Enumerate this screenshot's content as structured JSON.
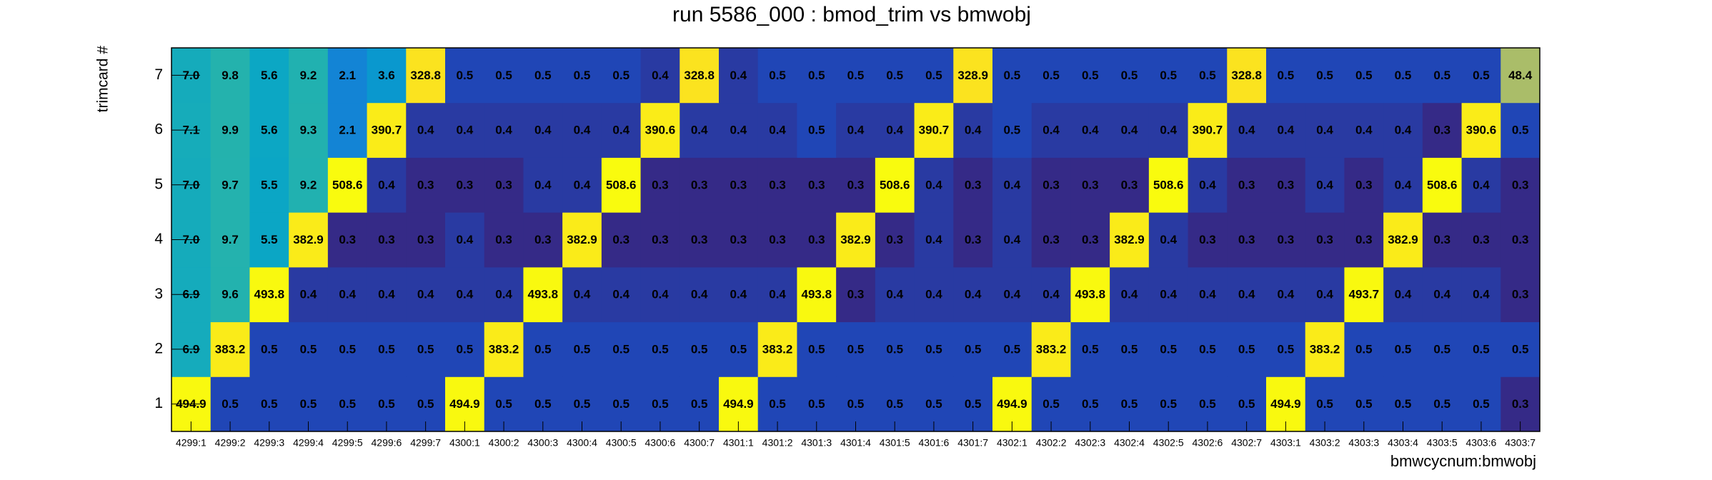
{
  "chart_data": {
    "type": "heatmap",
    "title": "run 5586_000 : bmod_trim vs bmwobj",
    "xlabel": "bmwcycnum:bmwobj",
    "ylabel": "trimcard #",
    "logz": true,
    "colormap": "bird",
    "x": [
      "4299:1",
      "4299:2",
      "4299:3",
      "4299:4",
      "4299:5",
      "4299:6",
      "4299:7",
      "4300:1",
      "4300:2",
      "4300:3",
      "4300:4",
      "4300:5",
      "4300:6",
      "4300:7",
      "4301:1",
      "4301:2",
      "4301:3",
      "4301:4",
      "4301:5",
      "4301:6",
      "4301:7",
      "4302:1",
      "4302:2",
      "4302:3",
      "4302:4",
      "4302:5",
      "4302:6",
      "4302:7",
      "4303:1",
      "4303:2",
      "4303:3",
      "4303:4",
      "4303:5",
      "4303:6",
      "4303:7"
    ],
    "y": [
      1,
      2,
      3,
      4,
      5,
      6,
      7
    ],
    "values": [
      [
        494.9,
        0.5,
        0.5,
        0.5,
        0.5,
        0.5,
        0.5,
        494.9,
        0.5,
        0.5,
        0.5,
        0.5,
        0.5,
        0.5,
        494.9,
        0.5,
        0.5,
        0.5,
        0.5,
        0.5,
        0.5,
        494.9,
        0.5,
        0.5,
        0.5,
        0.5,
        0.5,
        0.5,
        494.9,
        0.5,
        0.5,
        0.5,
        0.5,
        0.5,
        0.3
      ],
      [
        6.9,
        383.2,
        0.5,
        0.5,
        0.5,
        0.5,
        0.5,
        0.5,
        383.2,
        0.5,
        0.5,
        0.5,
        0.5,
        0.5,
        0.5,
        383.2,
        0.5,
        0.5,
        0.5,
        0.5,
        0.5,
        0.5,
        383.2,
        0.5,
        0.5,
        0.5,
        0.5,
        0.5,
        0.5,
        383.2,
        0.5,
        0.5,
        0.5,
        0.5,
        0.5
      ],
      [
        6.9,
        9.6,
        493.8,
        0.4,
        0.4,
        0.4,
        0.4,
        0.4,
        0.4,
        493.8,
        0.4,
        0.4,
        0.4,
        0.4,
        0.4,
        0.4,
        493.8,
        0.3,
        0.4,
        0.4,
        0.4,
        0.4,
        0.4,
        493.8,
        0.4,
        0.4,
        0.4,
        0.4,
        0.4,
        0.4,
        493.7,
        0.4,
        0.4,
        0.4,
        0.3
      ],
      [
        7.0,
        9.7,
        5.5,
        382.9,
        0.3,
        0.3,
        0.3,
        0.4,
        0.3,
        0.3,
        382.9,
        0.3,
        0.3,
        0.3,
        0.3,
        0.3,
        0.3,
        382.9,
        0.3,
        0.4,
        0.3,
        0.4,
        0.3,
        0.3,
        382.9,
        0.4,
        0.3,
        0.3,
        0.3,
        0.3,
        0.3,
        382.9,
        0.3,
        0.3,
        0.3
      ],
      [
        7.0,
        9.7,
        5.5,
        9.2,
        508.6,
        0.4,
        0.3,
        0.3,
        0.3,
        0.4,
        0.4,
        508.6,
        0.3,
        0.3,
        0.3,
        0.3,
        0.3,
        0.3,
        508.6,
        0.4,
        0.3,
        0.4,
        0.3,
        0.3,
        0.3,
        508.6,
        0.4,
        0.3,
        0.3,
        0.4,
        0.3,
        0.4,
        508.6,
        0.4,
        0.3
      ],
      [
        7.1,
        9.9,
        5.6,
        9.3,
        2.1,
        390.7,
        0.4,
        0.4,
        0.4,
        0.4,
        0.4,
        0.4,
        390.6,
        0.4,
        0.4,
        0.4,
        0.5,
        0.4,
        0.4,
        390.7,
        0.4,
        0.5,
        0.4,
        0.4,
        0.4,
        0.4,
        390.7,
        0.4,
        0.4,
        0.4,
        0.4,
        0.4,
        0.3,
        390.6,
        0.5
      ],
      [
        7.0,
        9.8,
        5.6,
        9.2,
        2.1,
        3.6,
        328.8,
        0.5,
        0.5,
        0.5,
        0.5,
        0.5,
        0.4,
        328.8,
        0.4,
        0.5,
        0.5,
        0.5,
        0.5,
        0.5,
        328.9,
        0.5,
        0.5,
        0.5,
        0.5,
        0.5,
        0.5,
        328.8,
        0.5,
        0.5,
        0.5,
        0.5,
        0.5,
        0.5,
        48.4
      ]
    ],
    "value_labels": [
      [
        "494.9",
        "0.5",
        "0.5",
        "0.5",
        "0.5",
        "0.5",
        "0.5",
        "494.9",
        "0.5",
        "0.5",
        "0.5",
        "0.5",
        "0.5",
        "0.5",
        "494.9",
        "0.5",
        "0.5",
        "0.5",
        "0.5",
        "0.5",
        "0.5",
        "494.9",
        "0.5",
        "0.5",
        "0.5",
        "0.5",
        "0.5",
        "0.5",
        "494.9",
        "0.5",
        "0.5",
        "0.5",
        "0.5",
        "0.5",
        "0.3"
      ],
      [
        "6.9",
        "383.2",
        "0.5",
        "0.5",
        "0.5",
        "0.5",
        "0.5",
        "0.5",
        "383.2",
        "0.5",
        "0.5",
        "0.5",
        "0.5",
        "0.5",
        "0.5",
        "383.2",
        "0.5",
        "0.5",
        "0.5",
        "0.5",
        "0.5",
        "0.5",
        "383.2",
        "0.5",
        "0.5",
        "0.5",
        "0.5",
        "0.5",
        "0.5",
        "383.2",
        "0.5",
        "0.5",
        "0.5",
        "0.5",
        "0.5"
      ],
      [
        "6.9",
        "9.6",
        "493.8",
        "0.4",
        "0.4",
        "0.4",
        "0.4",
        "0.4",
        "0.4",
        "493.8",
        "0.4",
        "0.4",
        "0.4",
        "0.4",
        "0.4",
        "0.4",
        "493.8",
        "0.3",
        "0.4",
        "0.4",
        "0.4",
        "0.4",
        "0.4",
        "493.8",
        "0.4",
        "0.4",
        "0.4",
        "0.4",
        "0.4",
        "0.4",
        "493.7",
        "0.4",
        "0.4",
        "0.4",
        "0.3"
      ],
      [
        "7.0",
        "9.7",
        "5.5",
        "382.9",
        "0.3",
        "0.3",
        "0.3",
        "0.4",
        "0.3",
        "0.3",
        "382.9",
        "0.3",
        "0.3",
        "0.3",
        "0.3",
        "0.3",
        "0.3",
        "382.9",
        "0.3",
        "0.4",
        "0.3",
        "0.4",
        "0.3",
        "0.3",
        "382.9",
        "0.4",
        "0.3",
        "0.3",
        "0.3",
        "0.3",
        "0.3",
        "382.9",
        "0.3",
        "0.3",
        "0.3"
      ],
      [
        "7.0",
        "9.7",
        "5.5",
        "9.2",
        "508.6",
        "0.4",
        "0.3",
        "0.3",
        "0.3",
        "0.4",
        "0.4",
        "508.6",
        "0.3",
        "0.3",
        "0.3",
        "0.3",
        "0.3",
        "0.3",
        "508.6",
        "0.4",
        "0.3",
        "0.4",
        "0.3",
        "0.3",
        "0.3",
        "508.6",
        "0.4",
        "0.3",
        "0.3",
        "0.4",
        "0.3",
        "0.4",
        "508.6",
        "0.4",
        "0.3"
      ],
      [
        "7.1",
        "9.9",
        "5.6",
        "9.3",
        "2.1",
        "390.7",
        "0.4",
        "0.4",
        "0.4",
        "0.4",
        "0.4",
        "0.4",
        "390.6",
        "0.4",
        "0.4",
        "0.4",
        "0.5",
        "0.4",
        "0.4",
        "390.7",
        "0.4",
        "0.5",
        "0.4",
        "0.4",
        "0.4",
        "0.4",
        "390.7",
        "0.4",
        "0.4",
        "0.4",
        "0.4",
        "0.4",
        "0.3",
        "390.6",
        "0.5"
      ],
      [
        "7.0",
        "9.8",
        "5.6",
        "9.2",
        "2.1",
        "3.6",
        "328.8",
        "0.5",
        "0.5",
        "0.5",
        "0.5",
        "0.5",
        "0.4",
        "328.8",
        "0.4",
        "0.5",
        "0.5",
        "0.5",
        "0.5",
        "0.5",
        "328.9",
        "0.5",
        "0.5",
        "0.5",
        "0.5",
        "0.5",
        "0.5",
        "328.8",
        "0.5",
        "0.5",
        "0.5",
        "0.5",
        "0.5",
        "0.5",
        "48.4"
      ]
    ]
  }
}
